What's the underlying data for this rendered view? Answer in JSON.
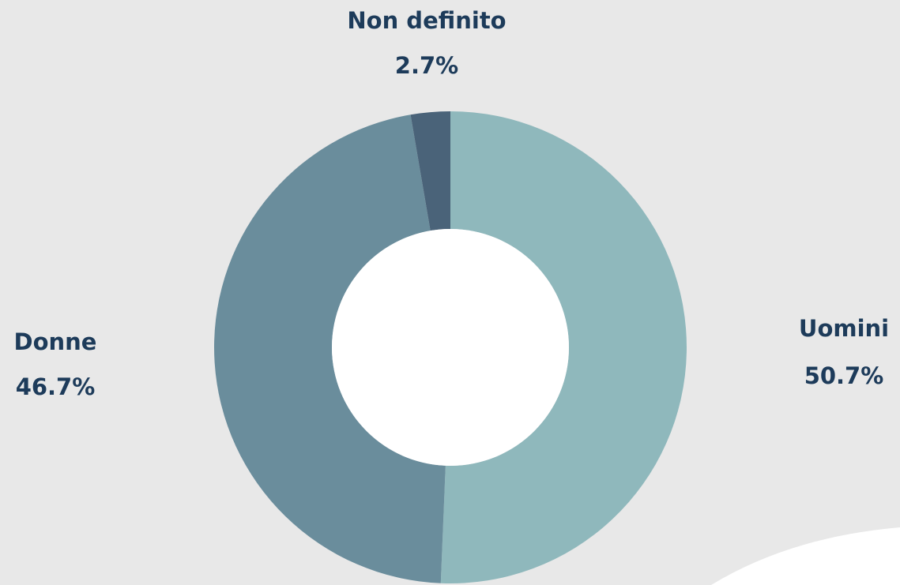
{
  "chart_data": {
    "type": "donut",
    "categories": [
      "Uomini",
      "Donne",
      "Non definito"
    ],
    "values": [
      50.7,
      46.7,
      2.7
    ],
    "value_labels": [
      "50.7%",
      "46.7%",
      "2.7%"
    ],
    "colors": [
      "#8fb8bc",
      "#6a8d9c",
      "#4a6379"
    ]
  }
}
